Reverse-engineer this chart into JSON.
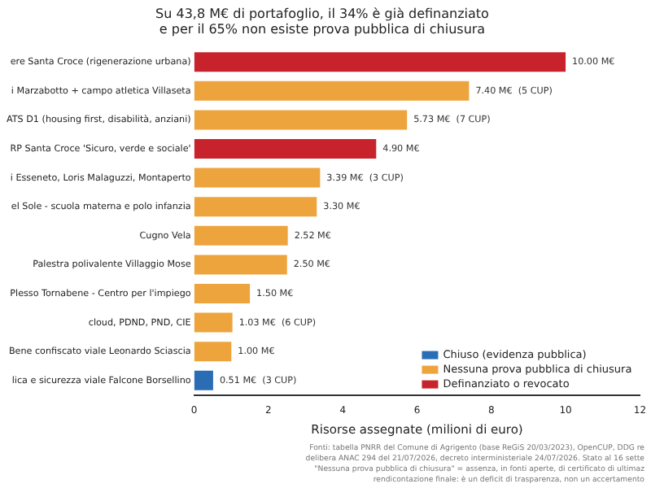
{
  "chart_data": {
    "type": "bar",
    "orientation": "horizontal",
    "stacked": true,
    "title": "Su 43,8 M€ di portafoglio, il 34% è già definanziato\ne per il 65% non esiste prova pubblica di chiusura",
    "xlabel": "Risorse assegnate (milioni di euro)",
    "categories": [
      "ere Santa Croce (rigenerazione urbana)",
      "i Marzabotto + campo atletica Villaseta",
      "ATS D1 (housing first, disabilità, anziani)",
      "RP Santa Croce 'Sicuro, verde e sociale'",
      "i Esseneto, Loris Malaguzzi, Montaperto",
      "el Sole - scuola materna e polo infanzia",
      "Cugno Vela",
      "Palestra polivalente Villaggio Mose",
      "Plesso Tornabene - Centro per l'impiego",
      "cloud, PDND, PND, CIE",
      "Bene confiscato viale Leonardo Sciascia",
      "lica e sicurezza viale Falcone Borsellino"
    ],
    "series": [
      {
        "name": "Chiuso (evidenza pubblica)",
        "color": "#2a6db5",
        "values": [
          null,
          null,
          null,
          null,
          null,
          null,
          null,
          null,
          null,
          null,
          null,
          0.51
        ],
        "value_labels": [
          null,
          null,
          null,
          null,
          null,
          null,
          null,
          null,
          null,
          null,
          null,
          "0.51 M€  (3 CUP)"
        ]
      },
      {
        "name": "Nessuna prova pubblica di chiusura",
        "color": "#eea43c",
        "values": [
          null,
          7.4,
          5.73,
          null,
          3.39,
          3.3,
          2.52,
          2.5,
          1.5,
          1.03,
          1.0,
          null
        ],
        "value_labels": [
          null,
          "7.40 M€  (5 CUP)",
          "5.73 M€  (7 CUP)",
          null,
          "3.39 M€  (3 CUP)",
          "3.30 M€",
          "2.52 M€",
          "2.50 M€",
          "1.50 M€",
          "1.03 M€  (6 CUP)",
          "1.00 M€",
          null
        ]
      },
      {
        "name": "Definanziato o revocato",
        "color": "#c8232c",
        "values": [
          10.0,
          null,
          null,
          4.9,
          null,
          null,
          null,
          null,
          null,
          null,
          null,
          null
        ],
        "value_labels": [
          "10.00 M€",
          null,
          null,
          "4.90 M€",
          null,
          null,
          null,
          null,
          null,
          null,
          null,
          null
        ]
      }
    ],
    "xlim": [
      0,
      12
    ],
    "xticks": [
      0,
      2,
      4,
      6,
      8,
      10,
      12
    ],
    "legend": "bottom right",
    "annotations": [
      "Fonti: tabella PNRR del Comune di Agrigento (base ReGiS 20/03/2023), OpenCUP, DDG re",
      "delibera ANAC 294 del 21/07/2026, decreto interministeriale 24/07/2026. Stato al 16 sette",
      "\"Nessuna prova pubblica di chiusura\" = assenza, in fonti aperte, di certificato di ultimaz",
      "rendicontazione finale: è un deficit di trasparenza, non un accertamento"
    ]
  }
}
